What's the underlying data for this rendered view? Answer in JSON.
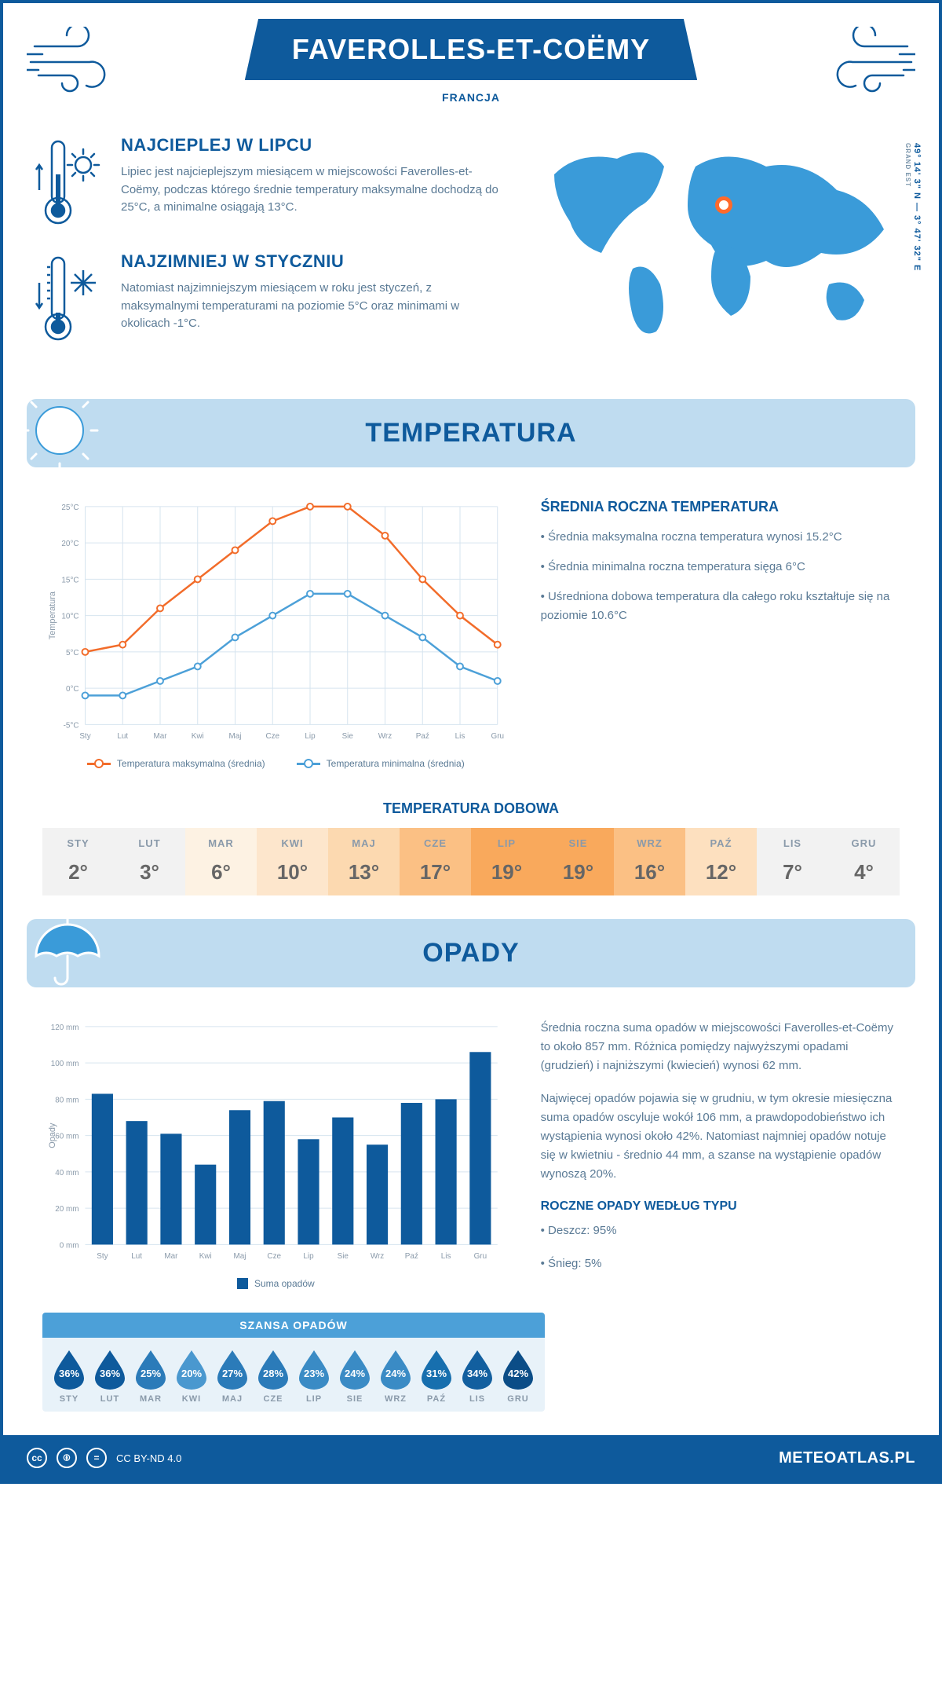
{
  "header": {
    "title": "FAVEROLLES-ET-COËMY",
    "country": "FRANCJA"
  },
  "intro": {
    "hot": {
      "title": "NAJCIEPLEJ W LIPCU",
      "text": "Lipiec jest najcieplejszym miesiącem w miejscowości Faverolles-et-Coëmy, podczas którego średnie temperatury maksymalne dochodzą do 25°C, a minimalne osiągają 13°C."
    },
    "cold": {
      "title": "NAJZIMNIEJ W STYCZNIU",
      "text": "Natomiast najzimniejszym miesiącem w roku jest styczeń, z maksymalnymi temperaturami na poziomie 5°C oraz minimami w okolicach -1°C."
    },
    "coords": "49° 14' 3\" N — 3° 47' 32\" E",
    "region": "GRAND EST"
  },
  "temperature": {
    "section_title": "TEMPERATURA",
    "chart": {
      "type": "line",
      "months": [
        "Sty",
        "Lut",
        "Mar",
        "Kwi",
        "Maj",
        "Cze",
        "Lip",
        "Sie",
        "Wrz",
        "Paź",
        "Lis",
        "Gru"
      ],
      "max_series": [
        5,
        6,
        11,
        15,
        19,
        23,
        25,
        25,
        21,
        15,
        10,
        6
      ],
      "min_series": [
        -1,
        -1,
        1,
        3,
        7,
        10,
        13,
        13,
        10,
        7,
        3,
        1
      ],
      "max_color": "#f26c2a",
      "min_color": "#4ca0d8",
      "ylim": [
        -5,
        25
      ],
      "ytick_step": 5,
      "y_label": "Temperatura",
      "grid_color": "#d6e4ef",
      "legend_max": "Temperatura maksymalna (średnia)",
      "legend_min": "Temperatura minimalna (średnia)"
    },
    "info": {
      "title": "ŚREDNIA ROCZNA TEMPERATURA",
      "b1": "• Średnia maksymalna roczna temperatura wynosi 15.2°C",
      "b2": "• Średnia minimalna roczna temperatura sięga 6°C",
      "b3": "• Uśredniona dobowa temperatura dla całego roku kształtuje się na poziomie 10.6°C"
    },
    "daily": {
      "title": "TEMPERATURA DOBOWA",
      "months": [
        "STY",
        "LUT",
        "MAR",
        "KWI",
        "MAJ",
        "CZE",
        "LIP",
        "SIE",
        "WRZ",
        "PAŹ",
        "LIS",
        "GRU"
      ],
      "values": [
        "2°",
        "3°",
        "6°",
        "10°",
        "13°",
        "17°",
        "19°",
        "19°",
        "16°",
        "12°",
        "7°",
        "4°"
      ],
      "bg_colors": [
        "#f2f2f2",
        "#f2f2f2",
        "#fdf2e3",
        "#fde6cc",
        "#fcd9b0",
        "#fbc084",
        "#f9a95c",
        "#f9a95c",
        "#fbc084",
        "#fde0bf",
        "#f2f2f2",
        "#f2f2f2"
      ]
    }
  },
  "precip": {
    "section_title": "OPADY",
    "chart": {
      "type": "bar",
      "months": [
        "Sty",
        "Lut",
        "Mar",
        "Kwi",
        "Maj",
        "Cze",
        "Lip",
        "Sie",
        "Wrz",
        "Paź",
        "Lis",
        "Gru"
      ],
      "values": [
        83,
        68,
        61,
        44,
        74,
        79,
        58,
        70,
        55,
        78,
        80,
        106
      ],
      "bar_color": "#0e5a9c",
      "ylim": [
        0,
        120
      ],
      "ytick_step": 20,
      "y_label": "Opady",
      "grid_color": "#d6e4ef",
      "legend": "Suma opadów"
    },
    "info": {
      "p1": "Średnia roczna suma opadów w miejscowości Faverolles-et-Coëmy to około 857 mm. Różnica pomiędzy najwyższymi opadami (grudzień) i najniższymi (kwiecień) wynosi 62 mm.",
      "p2": "Najwięcej opadów pojawia się w grudniu, w tym okresie miesięczna suma opadów oscyluje wokół 106 mm, a prawdopodobieństwo ich wystąpienia wynosi około 42%. Natomiast najmniej opadów notuje się w kwietniu - średnio 44 mm, a szanse na wystąpienie opadów wynoszą 20%.",
      "type_title": "ROCZNE OPADY WEDŁUG TYPU",
      "rain": "• Deszcz: 95%",
      "snow": "• Śnieg: 5%"
    },
    "chance": {
      "title": "SZANSA OPADÓW",
      "months": [
        "STY",
        "LUT",
        "MAR",
        "KWI",
        "MAJ",
        "CZE",
        "LIP",
        "SIE",
        "WRZ",
        "PAŹ",
        "LIS",
        "GRU"
      ],
      "values": [
        "36%",
        "36%",
        "25%",
        "20%",
        "27%",
        "28%",
        "23%",
        "24%",
        "24%",
        "31%",
        "34%",
        "42%"
      ],
      "drop_colors": [
        "#0e5a9c",
        "#0e5a9c",
        "#2b7bb9",
        "#4a98cf",
        "#2b7bb9",
        "#2b7bb9",
        "#3a8bc5",
        "#3a8bc5",
        "#3a8bc5",
        "#176fae",
        "#125f9f",
        "#0b4d87"
      ]
    }
  },
  "footer": {
    "license": "CC BY-ND 4.0",
    "site": "METEOATLAS.PL"
  }
}
